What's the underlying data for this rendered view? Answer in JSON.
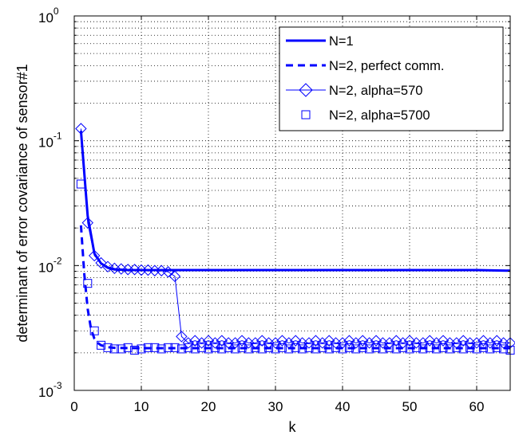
{
  "chart_data": {
    "type": "line",
    "title": "",
    "xlabel": "k",
    "ylabel": "determinant of error covariance of sensor#1",
    "xlim": [
      0,
      65
    ],
    "ylim": [
      0.001,
      1
    ],
    "yscale": "log",
    "grid": true,
    "x_ticks": [
      "0",
      "10",
      "20",
      "30",
      "40",
      "50",
      "60"
    ],
    "y_ticks": [
      {
        "base": "10",
        "exp": "-3"
      },
      {
        "base": "10",
        "exp": "-2"
      },
      {
        "base": "10",
        "exp": "-1"
      },
      {
        "base": "10",
        "exp": "0"
      }
    ],
    "legend_position": "top-right",
    "colors": {
      "series": "#0000ff",
      "grid": "#000000",
      "axes": "#000000"
    },
    "series": [
      {
        "name": "N=1",
        "style": "solid-thick",
        "x": [
          1,
          2,
          3,
          4,
          5,
          6,
          8,
          10,
          15,
          20,
          30,
          40,
          50,
          60,
          65
        ],
        "y": [
          0.12,
          0.025,
          0.0125,
          0.0104,
          0.0096,
          0.0093,
          0.0092,
          0.0092,
          0.0092,
          0.0092,
          0.0092,
          0.0092,
          0.0092,
          0.0092,
          0.0091
        ]
      },
      {
        "name": "N=2, perfect comm.",
        "style": "dashed-thick",
        "x": [
          1,
          1.5,
          2,
          2.5,
          3,
          3.5,
          4,
          5,
          6,
          10,
          20,
          30,
          40,
          50,
          60,
          65
        ],
        "y": [
          0.021,
          0.0085,
          0.0045,
          0.0031,
          0.0026,
          0.0024,
          0.0023,
          0.00222,
          0.00219,
          0.00218,
          0.00218,
          0.00218,
          0.00218,
          0.00218,
          0.00218,
          0.00218
        ]
      },
      {
        "name": "N=2, alpha=570",
        "style": "diamond-thin",
        "x": [
          1,
          2,
          3,
          4,
          5,
          6,
          7,
          8,
          9,
          10,
          11,
          12,
          13,
          14,
          15,
          16,
          17,
          18,
          19,
          20,
          21,
          22,
          23,
          24,
          25,
          26,
          27,
          28,
          29,
          30,
          31,
          32,
          33,
          34,
          35,
          36,
          37,
          38,
          39,
          40,
          41,
          42,
          43,
          44,
          45,
          46,
          47,
          48,
          49,
          50,
          51,
          52,
          53,
          54,
          55,
          56,
          57,
          58,
          59,
          60,
          61,
          62,
          63,
          64,
          65
        ],
        "y": [
          0.125,
          0.022,
          0.012,
          0.0105,
          0.0098,
          0.0095,
          0.0094,
          0.0093,
          0.0093,
          0.0092,
          0.0092,
          0.0091,
          0.0091,
          0.0089,
          0.0082,
          0.0027,
          0.0024,
          0.0025,
          0.0024,
          0.0025,
          0.0024,
          0.0025,
          0.0024,
          0.0024,
          0.0025,
          0.0024,
          0.0024,
          0.0025,
          0.0024,
          0.0024,
          0.0025,
          0.0024,
          0.0025,
          0.0024,
          0.0024,
          0.0025,
          0.0024,
          0.0025,
          0.0024,
          0.0024,
          0.0025,
          0.0024,
          0.0025,
          0.0024,
          0.0025,
          0.0024,
          0.0024,
          0.0025,
          0.0024,
          0.0025,
          0.0024,
          0.0024,
          0.0025,
          0.0024,
          0.0025,
          0.0024,
          0.0024,
          0.0025,
          0.0024,
          0.0024,
          0.0025,
          0.0024,
          0.0025,
          0.0024,
          0.0024
        ]
      },
      {
        "name": "N=2, alpha=5700",
        "style": "square-markers",
        "x": [
          1,
          2,
          3,
          4,
          5,
          6,
          7,
          8,
          9,
          10,
          11,
          12,
          13,
          14,
          15,
          16,
          17,
          18,
          19,
          20,
          21,
          22,
          23,
          24,
          25,
          26,
          27,
          28,
          29,
          30,
          31,
          32,
          33,
          34,
          35,
          36,
          37,
          38,
          39,
          40,
          41,
          42,
          43,
          44,
          45,
          46,
          47,
          48,
          49,
          50,
          51,
          52,
          53,
          54,
          55,
          56,
          57,
          58,
          59,
          60,
          61,
          62,
          63,
          64,
          65
        ],
        "y": [
          0.045,
          0.0072,
          0.003,
          0.0023,
          0.0022,
          0.00215,
          0.00215,
          0.0022,
          0.0021,
          0.00215,
          0.0022,
          0.0022,
          0.00215,
          0.0022,
          0.0022,
          0.00215,
          0.0022,
          0.00215,
          0.0022,
          0.00215,
          0.0022,
          0.00215,
          0.0022,
          0.00215,
          0.0022,
          0.00215,
          0.0022,
          0.00215,
          0.0022,
          0.00215,
          0.0022,
          0.00215,
          0.0022,
          0.00215,
          0.0022,
          0.00215,
          0.0022,
          0.00215,
          0.0022,
          0.00215,
          0.0022,
          0.00215,
          0.0022,
          0.00215,
          0.0022,
          0.00215,
          0.0022,
          0.00215,
          0.0022,
          0.00215,
          0.0022,
          0.00215,
          0.0022,
          0.00215,
          0.0022,
          0.00215,
          0.0022,
          0.00215,
          0.0022,
          0.00215,
          0.0022,
          0.00215,
          0.0022,
          0.00215,
          0.0021
        ]
      }
    ]
  }
}
